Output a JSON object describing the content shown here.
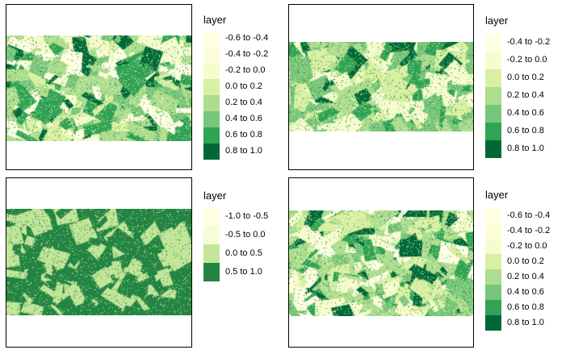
{
  "panels": [
    {
      "legend": {
        "title": "layer",
        "items": [
          {
            "label": "-0.6 to -0.4",
            "color": "#ffffe5"
          },
          {
            "label": "-0.4 to -0.2",
            "color": "#fcfed9"
          },
          {
            "label": "-0.2 to 0.0",
            "color": "#f7fccf"
          },
          {
            "label": "0.0 to 0.2",
            "color": "#d9f0a3"
          },
          {
            "label": "0.2 to 0.4",
            "color": "#addd8e"
          },
          {
            "label": "0.4 to 0.6",
            "color": "#78c679"
          },
          {
            "label": "0.6 to 0.8",
            "color": "#31a354"
          },
          {
            "label": "0.8 to 1.0",
            "color": "#006837"
          }
        ]
      },
      "map_palette": [
        "#ffffe5",
        "#f7fccf",
        "#d9f0a3",
        "#addd8e",
        "#78c679",
        "#31a354",
        "#006837"
      ]
    },
    {
      "legend": {
        "title": "layer",
        "items": [
          {
            "label": "-0.4 to -0.2",
            "color": "#ffffe5"
          },
          {
            "label": "-0.2 to 0.0",
            "color": "#f7fccf"
          },
          {
            "label": "0.0 to 0.2",
            "color": "#d9f0a3"
          },
          {
            "label": "0.2 to 0.4",
            "color": "#addd8e"
          },
          {
            "label": "0.4 to 0.6",
            "color": "#78c679"
          },
          {
            "label": "0.6 to 0.8",
            "color": "#31a354"
          },
          {
            "label": "0.8 to 1.0",
            "color": "#006837"
          }
        ]
      },
      "map_palette": [
        "#f7fccf",
        "#d9f0a3",
        "#addd8e",
        "#78c679",
        "#31a354",
        "#006837"
      ]
    },
    {
      "legend": {
        "title": "layer",
        "items": [
          {
            "label": "-1.0 to -0.5",
            "color": "#ffffe5"
          },
          {
            "label": "-0.5 to 0.0",
            "color": "#f7fcd4"
          },
          {
            "label": "0.0 to 0.5",
            "color": "#c2e699"
          },
          {
            "label": "0.5 to 1.0",
            "color": "#238443"
          }
        ]
      },
      "map_palette": [
        "#c2e699",
        "#238443"
      ]
    },
    {
      "legend": {
        "title": "layer",
        "items": [
          {
            "label": "-0.6 to -0.4",
            "color": "#ffffe5"
          },
          {
            "label": "-0.4 to -0.2",
            "color": "#fcfed9"
          },
          {
            "label": "-0.2 to 0.0",
            "color": "#f7fccf"
          },
          {
            "label": "0.0 to 0.2",
            "color": "#d9f0a3"
          },
          {
            "label": "0.2 to 0.4",
            "color": "#addd8e"
          },
          {
            "label": "0.4 to 0.6",
            "color": "#78c679"
          },
          {
            "label": "0.6 to 0.8",
            "color": "#31a354"
          },
          {
            "label": "0.8 to 1.0",
            "color": "#006837"
          }
        ]
      },
      "map_palette": [
        "#ffffe5",
        "#f7fccf",
        "#d9f0a3",
        "#addd8e",
        "#78c679",
        "#31a354",
        "#006837"
      ]
    }
  ]
}
